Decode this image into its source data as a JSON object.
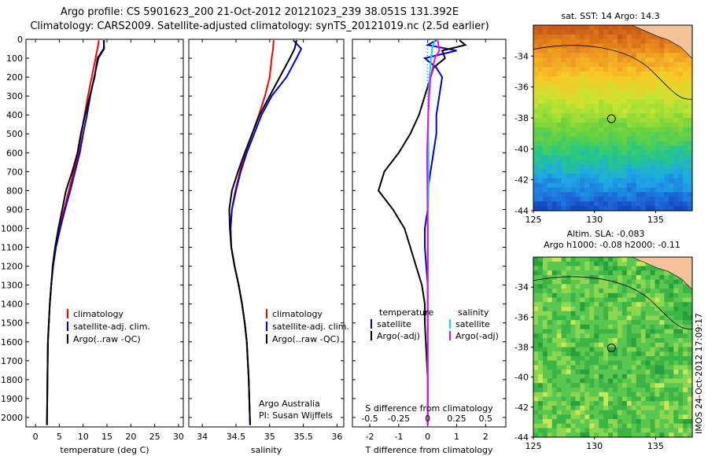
{
  "header": {
    "line1": "Argo profile: CS 5901623_200 21-Oct-2012 20121023_239 38.051S 131.392E",
    "line2": "Climatology: CARS2009. Satellite-adjusted climatology: synTS_20121019.nc (2.5d earlier)"
  },
  "colors": {
    "climatology": "#ff0000",
    "satellite": "#0000dd",
    "argo": "#000000",
    "sal_satellite": "#00e5e5",
    "sal_argo": "#ff00ff"
  },
  "chart_data": [
    {
      "type": "line",
      "title": "",
      "xlabel": "temperature (deg C)",
      "ylabel": "",
      "xlim": [
        -2,
        31
      ],
      "ylim": [
        2050,
        0
      ],
      "xticks": [
        "0",
        "5",
        "10",
        "15",
        "20",
        "25",
        "30"
      ],
      "yticks": [
        "0",
        "100",
        "200",
        "300",
        "400",
        "500",
        "600",
        "700",
        "800",
        "900",
        "1000",
        "1100",
        "1200",
        "1300",
        "1400",
        "1500",
        "1600",
        "1700",
        "1800",
        "1900",
        "2000"
      ],
      "legend": [
        "climatology",
        "satellite-adj. clim.",
        "Argo(..raw -QC)"
      ],
      "legend_position": "lower-center",
      "series": [
        {
          "name": "climatology",
          "color": "#ff0000",
          "x": [
            13.3,
            13.0,
            12.6,
            11.8,
            11.0,
            10.3,
            9.6,
            9.0,
            8.0,
            7.0,
            6.0,
            5.0,
            4.2,
            3.7,
            3.3,
            3.0,
            2.8,
            2.6,
            2.5,
            2.4
          ],
          "y": [
            5,
            50,
            100,
            200,
            300,
            400,
            500,
            600,
            700,
            800,
            900,
            1000,
            1100,
            1200,
            1300,
            1400,
            1500,
            1600,
            1800,
            2040
          ]
        },
        {
          "name": "satellite-adj. clim.",
          "color": "#0000dd",
          "x": [
            14.3,
            14.4,
            13.2,
            12.3,
            11.5,
            10.8,
            10.0,
            9.3,
            8.3,
            7.3,
            6.2,
            5.2,
            4.3,
            3.7,
            3.3,
            3.0,
            2.8,
            2.6,
            2.5,
            2.4
          ],
          "y": [
            5,
            50,
            100,
            200,
            300,
            400,
            500,
            600,
            700,
            800,
            900,
            1000,
            1100,
            1200,
            1300,
            1400,
            1500,
            1600,
            1800,
            2040
          ]
        },
        {
          "name": "Argo(..raw -QC)",
          "color": "#000000",
          "x": [
            14.4,
            14.3,
            13.0,
            12.4,
            11.4,
            10.4,
            9.5,
            8.8,
            7.7,
            6.4,
            5.6,
            4.8,
            4.1,
            3.6,
            3.3,
            3.0,
            2.8,
            2.6,
            2.5,
            2.4
          ],
          "y": [
            5,
            50,
            100,
            200,
            300,
            400,
            500,
            600,
            700,
            800,
            900,
            1000,
            1100,
            1200,
            1300,
            1400,
            1500,
            1600,
            1800,
            2040
          ]
        }
      ]
    },
    {
      "type": "line",
      "title": "",
      "xlabel": "salinity",
      "ylabel": "",
      "xlim": [
        33.8,
        36.1
      ],
      "ylim": [
        2050,
        0
      ],
      "xticks": [
        "34",
        "34.5",
        "35",
        "35.5",
        "36"
      ],
      "legend": [
        "climatology",
        "satellite-adj. clim.",
        "Argo(..raw -QC)"
      ],
      "legend_position": "lower-center",
      "annotations": [
        "Argo Australia",
        "PI: Susan Wijffels"
      ],
      "series": [
        {
          "name": "climatology",
          "color": "#ff0000",
          "x": [
            35.06,
            35.05,
            35.03,
            35.0,
            34.93,
            34.84,
            34.74,
            34.64,
            34.56,
            34.49,
            34.44,
            34.42,
            34.43,
            34.48,
            34.54,
            34.59,
            34.63,
            34.66,
            34.69,
            34.71
          ],
          "y": [
            5,
            50,
            100,
            200,
            300,
            400,
            500,
            600,
            700,
            800,
            900,
            1000,
            1100,
            1200,
            1300,
            1400,
            1500,
            1600,
            1800,
            2040
          ]
        },
        {
          "name": "satellite-adj. clim.",
          "color": "#0000dd",
          "x": [
            35.35,
            35.47,
            35.4,
            35.25,
            35.03,
            34.88,
            34.77,
            34.66,
            34.57,
            34.5,
            34.44,
            34.42,
            34.43,
            34.48,
            34.54,
            34.59,
            34.63,
            34.66,
            34.69,
            34.71
          ],
          "y": [
            5,
            50,
            100,
            200,
            300,
            400,
            500,
            600,
            700,
            800,
            900,
            1000,
            1100,
            1200,
            1300,
            1400,
            1500,
            1600,
            1800,
            2040
          ]
        },
        {
          "name": "Argo(..raw -QC)",
          "color": "#000000",
          "x": [
            35.4,
            35.37,
            35.3,
            35.15,
            35.0,
            34.85,
            34.74,
            34.63,
            34.53,
            34.44,
            34.4,
            34.41,
            34.43,
            34.48,
            34.54,
            34.59,
            34.63,
            34.66,
            34.69,
            34.71
          ],
          "y": [
            5,
            50,
            100,
            200,
            300,
            400,
            500,
            600,
            700,
            800,
            900,
            1000,
            1100,
            1200,
            1300,
            1400,
            1500,
            1600,
            1800,
            2040
          ]
        }
      ]
    },
    {
      "type": "line",
      "title": "",
      "xlabel": "T difference from climatology",
      "xlabel_top": "S difference from climatology",
      "ylabel": "",
      "xlim": [
        -2.6,
        2.7
      ],
      "ylim": [
        2050,
        0
      ],
      "xticks": [
        "-2",
        "-1",
        "0",
        "1",
        "2"
      ],
      "xticks_s": [
        "-0.5",
        "-0.25",
        "0",
        "0.25",
        "0.5"
      ],
      "legend": [
        "temperature",
        "satellite",
        "Argo(-adj)",
        "salinity",
        "satellite",
        "Argo(-adj)"
      ],
      "legend_position": "lower-center",
      "series": [
        {
          "name": "satellite",
          "color": "#0000dd",
          "x": [
            0.3,
            0.0,
            1.0,
            -0.1,
            0.3,
            0.5,
            0.4,
            0.3,
            0.3,
            0.2,
            0.1,
            0.0,
            0.0,
            -0.1,
            -0.1,
            0.0,
            0.0,
            0.0,
            0.0,
            0.0
          ],
          "y": [
            5,
            30,
            60,
            100,
            150,
            200,
            300,
            400,
            500,
            600,
            700,
            800,
            900,
            1000,
            1100,
            1300,
            1500,
            1700,
            1900,
            2040
          ]
        },
        {
          "name": "Argo(-adj)",
          "color": "#000000",
          "x": [
            1.1,
            1.3,
            0.5,
            0.6,
            0.2,
            0.0,
            -0.3,
            -0.6,
            -1.0,
            -1.5,
            -1.7,
            -1.2,
            -0.8,
            -0.6,
            -0.4,
            -0.2,
            -0.1,
            -0.1,
            0.0,
            0.0
          ],
          "y": [
            5,
            30,
            60,
            100,
            150,
            250,
            400,
            500,
            600,
            700,
            800,
            900,
            1000,
            1100,
            1200,
            1300,
            1400,
            1500,
            1800,
            2040
          ]
        },
        {
          "name": "satellite",
          "color": "#00e5e5",
          "x": [
            0.25,
            0.15,
            0.12,
            0.06,
            0.03,
            0.02,
            0.02,
            0.03,
            0.03,
            0.03,
            0.02,
            0.01,
            0.01,
            0.0,
            0.0,
            0.0,
            0.0,
            0.0
          ],
          "y": [
            5,
            50,
            100,
            200,
            300,
            400,
            500,
            600,
            700,
            800,
            900,
            1000,
            1200,
            1400,
            1600,
            1800,
            1900,
            2040
          ]
        },
        {
          "name": "Argo(-adj)",
          "color": "#ff00ff",
          "x": [
            0.35,
            0.4,
            0.25,
            0.1,
            0.05,
            0.02,
            0.0,
            -0.02,
            -0.01,
            0.0,
            0.0,
            0.0,
            0.0,
            0.0,
            0.0,
            0.0,
            0.0
          ],
          "y": [
            5,
            60,
            100,
            200,
            300,
            400,
            500,
            600,
            800,
            1000,
            1200,
            1400,
            1500,
            1600,
            1800,
            1900,
            2040
          ]
        }
      ]
    },
    {
      "type": "heatmap",
      "title": "sat. SST: 14 Argo: 14.3",
      "xlim": [
        125,
        138
      ],
      "ylim": [
        -44,
        -32
      ],
      "xticks": [
        "125",
        "130",
        "135"
      ],
      "yticks": [
        "-34",
        "-36",
        "-38",
        "-40",
        "-42",
        "-44"
      ],
      "marker": {
        "lon": 131.39,
        "lat": -38.05
      }
    },
    {
      "type": "heatmap",
      "title": "Altim. SLA: -0.083",
      "subtitle": "Argo h1000: -0.08 h2000: -0.11",
      "xlim": [
        125,
        138
      ],
      "ylim": [
        -44,
        -32
      ],
      "xticks": [
        "125",
        "130",
        "135"
      ],
      "yticks": [
        "-34",
        "-36",
        "-38",
        "-40",
        "-42",
        "-44"
      ],
      "marker": {
        "lon": 131.39,
        "lat": -38.05
      }
    }
  ],
  "side_label": "IMOS 24-Oct-2012 17:09:17"
}
